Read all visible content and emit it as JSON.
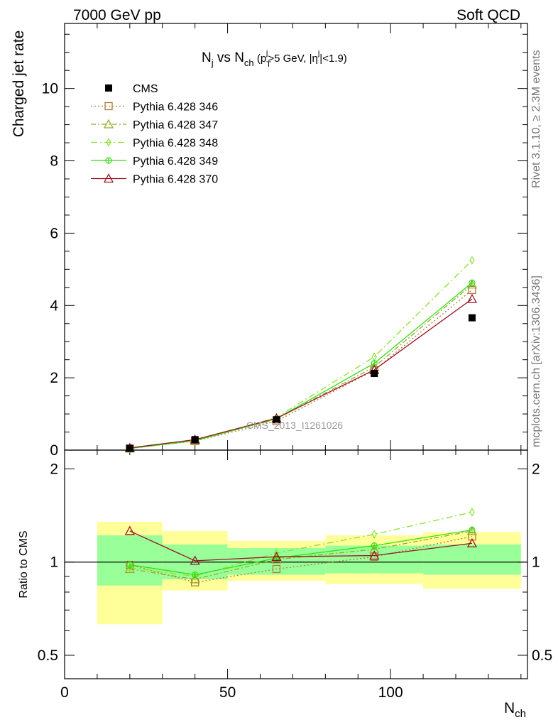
{
  "header": {
    "left": "7000 GeV pp",
    "right": "Soft QCD"
  },
  "side_labels": {
    "rivet": "Rivet 3.1.10, ≥ 2.3M events",
    "mcplots": "mcplots.cern.ch [arXiv:1306.3436]"
  },
  "chart_data": {
    "type": "line",
    "title_parts": {
      "N": "N",
      "j": "j",
      "vs": " vs ",
      "Nch_N": "N",
      "ch": "ch",
      "paren_open": " (p",
      "T": "T",
      "pt_j": "j",
      "cut": ">5 GeV, |",
      "eta": "η",
      "eta_j": "j",
      "eta_cut": "|<1.9)"
    },
    "ylabel": "Charged jet rate",
    "ratio_ylabel": "Ratio to CMS",
    "xlabel_main": "N",
    "xlabel_sub": "ch",
    "watermark": "CMS_2013_I1261026",
    "xlim": [
      0,
      142
    ],
    "ylim": [
      0,
      11.8
    ],
    "ratio_ylim": [
      0.42,
      2.3
    ],
    "x_ticks": [
      "0",
      "50",
      "100"
    ],
    "y_ticks": [
      "0",
      "2",
      "4",
      "6",
      "8",
      "10"
    ],
    "ratio_ticks": [
      "0.5",
      "1",
      "2"
    ],
    "ratio_tick_labels_right": [
      "0.5",
      "1",
      "2"
    ],
    "x": [
      20,
      40,
      65,
      95,
      125
    ],
    "data": {
      "name": "CMS",
      "bins": [
        [
          10,
          30
        ],
        [
          30,
          50
        ],
        [
          50,
          80
        ],
        [
          80,
          110
        ],
        [
          110,
          140
        ]
      ],
      "values": [
        0.048,
        0.29,
        0.84,
        2.12,
        3.66
      ],
      "band_outer": [
        [
          0.63,
          1.35
        ],
        [
          0.81,
          1.26
        ],
        [
          0.87,
          1.17
        ],
        [
          0.85,
          1.22
        ],
        [
          0.82,
          1.25
        ]
      ],
      "band_inner": [
        [
          0.84,
          1.22
        ],
        [
          0.88,
          1.14
        ],
        [
          0.91,
          1.11
        ],
        [
          0.92,
          1.13
        ],
        [
          0.91,
          1.14
        ]
      ]
    },
    "series": [
      {
        "name": "Pythia 6.428 346",
        "color": "#b07a3a",
        "marker": "square",
        "dash": "2,3",
        "values": [
          0.047,
          0.25,
          0.8,
          2.21,
          4.43
        ],
        "ratio": [
          0.98,
          0.86,
          0.95,
          1.04,
          1.21
        ]
      },
      {
        "name": "Pythia 6.428 347",
        "color": "#9aa62a",
        "marker": "triangle",
        "dash": "7,3,2,3",
        "values": [
          0.046,
          0.26,
          0.86,
          2.3,
          4.58
        ],
        "ratio": [
          0.95,
          0.88,
          1.02,
          1.1,
          1.26
        ]
      },
      {
        "name": "Pythia 6.428 348",
        "color": "#88e030",
        "marker": "diamond",
        "dash": "9,4,2,4",
        "values": [
          0.047,
          0.27,
          0.9,
          2.58,
          5.25
        ],
        "ratio": [
          0.96,
          0.9,
          1.07,
          1.23,
          1.45
        ]
      },
      {
        "name": "Pythia 6.428 349",
        "color": "#33dd11",
        "marker": "circle-cross",
        "dash": "",
        "values": [
          0.047,
          0.26,
          0.87,
          2.4,
          4.63
        ],
        "ratio": [
          0.98,
          0.91,
          1.03,
          1.13,
          1.27
        ]
      },
      {
        "name": "Pythia 6.428 370",
        "color": "#991122",
        "marker": "triangle",
        "dash": "",
        "values": [
          0.06,
          0.29,
          0.88,
          2.22,
          4.18
        ],
        "ratio": [
          1.26,
          1.01,
          1.04,
          1.05,
          1.15
        ]
      }
    ],
    "colors": {
      "band_outer": "#ffff99",
      "band_inner": "#99ff99",
      "data": "#000000",
      "frame": "#000000"
    }
  }
}
